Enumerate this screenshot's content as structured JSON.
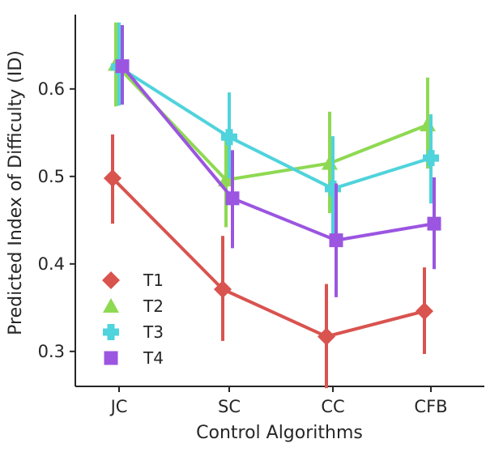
{
  "chart_data": {
    "type": "line",
    "title": "",
    "xlabel": "Control Algorithms",
    "ylabel": "Predicted Index of Difficulty (ID)",
    "categories": [
      "JC",
      "SC",
      "CC",
      "CFB"
    ],
    "ylim": [
      0.26,
      0.685
    ],
    "yticks": [
      {
        "value": 0.3,
        "label": "0.3"
      },
      {
        "value": 0.4,
        "label": "0.4"
      },
      {
        "value": 0.5,
        "label": "0.5"
      },
      {
        "value": 0.6,
        "label": "0.6"
      }
    ],
    "grid": false,
    "legend": {
      "placement": "lower-left"
    },
    "error_bars": true,
    "series": [
      {
        "name": "T1",
        "marker": "diamond",
        "color": "#d9534f",
        "values": [
          0.498,
          0.371,
          0.317,
          0.346
        ],
        "lower": [
          0.446,
          0.312,
          0.258,
          0.297
        ],
        "upper": [
          0.548,
          0.432,
          0.377,
          0.396
        ]
      },
      {
        "name": "T2",
        "marker": "triangle",
        "color": "#8ed952",
        "values": [
          0.628,
          0.496,
          0.515,
          0.559
        ],
        "lower": [
          0.58,
          0.442,
          0.458,
          0.509
        ],
        "upper": [
          0.676,
          0.548,
          0.574,
          0.613
        ]
      },
      {
        "name": "T3",
        "marker": "plus",
        "color": "#4fd3dc",
        "values": [
          0.625,
          0.545,
          0.486,
          0.521
        ],
        "lower": [
          0.581,
          0.498,
          0.43,
          0.469
        ],
        "upper": [
          0.676,
          0.596,
          0.546,
          0.571
        ]
      },
      {
        "name": "T4",
        "marker": "square",
        "color": "#9b55e0",
        "values": [
          0.626,
          0.475,
          0.427,
          0.446
        ],
        "lower": [
          0.582,
          0.418,
          0.362,
          0.394
        ],
        "upper": [
          0.673,
          0.53,
          0.492,
          0.499
        ]
      }
    ]
  }
}
